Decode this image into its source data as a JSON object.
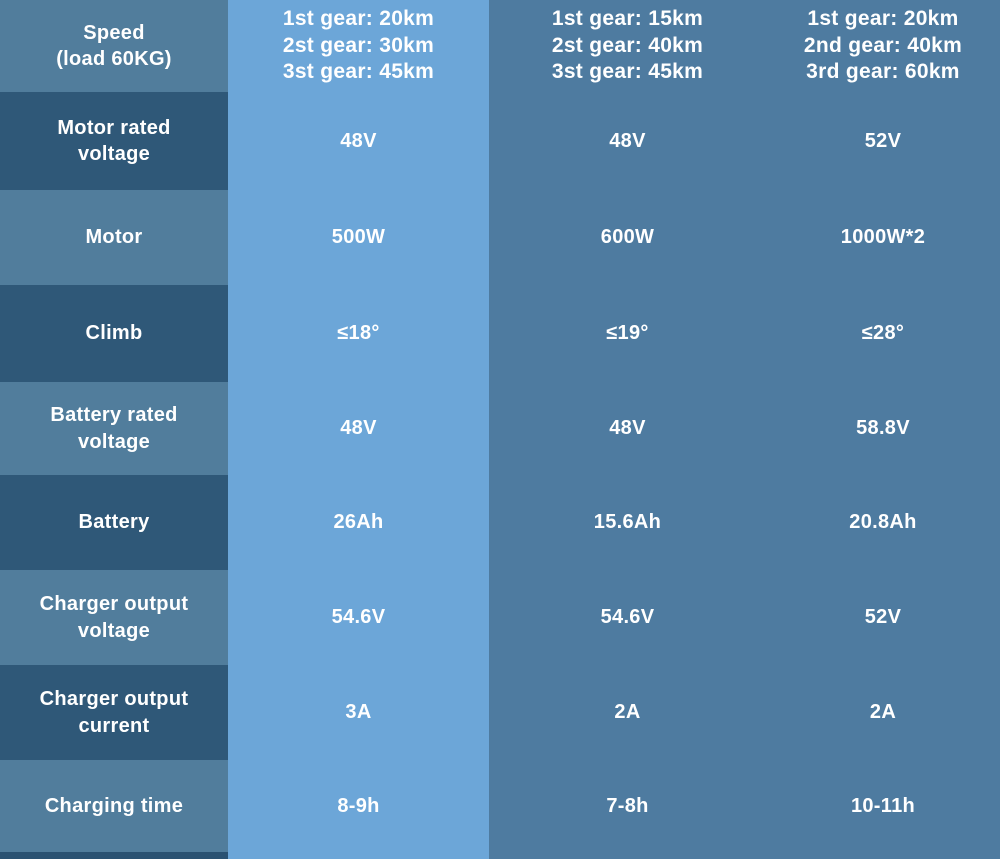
{
  "colors": {
    "label_light": "#517d9c",
    "label_dark": "#2f5878",
    "col1_bg": "#6ca6d8",
    "col23_bg": "#4e7ba0",
    "bottom_strip": "#2b5272",
    "text": "#ffffff"
  },
  "table": {
    "rows": [
      {
        "label": "Speed\n(load 60KG)",
        "c1": "1st gear: 20km\n2st gear: 30km\n3st gear: 45km",
        "c2": "1st gear: 15km\n2st gear: 40km\n3st gear: 45km",
        "c3": "1st gear: 20km\n2nd gear: 40km\n3rd gear: 60km"
      },
      {
        "label": "Motor rated\nvoltage",
        "c1": "48V",
        "c2": "48V",
        "c3": "52V"
      },
      {
        "label": "Motor",
        "c1": "500W",
        "c2": "600W",
        "c3": "1000W*2"
      },
      {
        "label": "Climb",
        "c1": "≤18°",
        "c2": "≤19°",
        "c3": "≤28°"
      },
      {
        "label": "Battery rated\nvoltage",
        "c1": "48V",
        "c2": "48V",
        "c3": "58.8V"
      },
      {
        "label": "Battery",
        "c1": "26Ah",
        "c2": "15.6Ah",
        "c3": "20.8Ah"
      },
      {
        "label": "Charger output\nvoltage",
        "c1": "54.6V",
        "c2": "54.6V",
        "c3": "52V"
      },
      {
        "label": "Charger output\ncurrent",
        "c1": "3A",
        "c2": "2A",
        "c3": "2A"
      },
      {
        "label": "Charging time",
        "c1": "8-9h",
        "c2": "7-8h",
        "c3": "10-11h"
      }
    ]
  }
}
